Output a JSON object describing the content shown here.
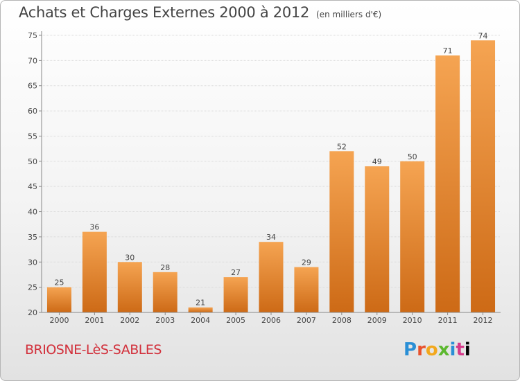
{
  "header": {
    "title": "Achats et Charges Externes 2000 à 2012",
    "subtitle": "(en milliers d'€)"
  },
  "footer": {
    "city": "BRIOSNE-LèS-SABLES",
    "logo": [
      "P",
      "r",
      "o",
      "x",
      "i",
      "t",
      "i"
    ]
  },
  "colors": {
    "bar_top": "#f5a452",
    "bar_bottom": "#cd6a16",
    "city": "#d2313c",
    "title": "#444444"
  },
  "chart_data": {
    "type": "bar",
    "title": "Achats et Charges Externes 2000 à 2012",
    "subtitle": "(en milliers d'€)",
    "xlabel": "",
    "ylabel": "",
    "categories": [
      "2000",
      "2001",
      "2002",
      "2003",
      "2004",
      "2005",
      "2006",
      "2007",
      "2008",
      "2009",
      "2010",
      "2011",
      "2012"
    ],
    "values": [
      25,
      36,
      30,
      28,
      21,
      27,
      34,
      29,
      52,
      49,
      50,
      71,
      74
    ],
    "ylim": [
      20,
      75
    ],
    "yticks": [
      20,
      25,
      30,
      35,
      40,
      45,
      50,
      55,
      60,
      65,
      70,
      75
    ],
    "grid": "horizontal",
    "data_labels": true
  }
}
